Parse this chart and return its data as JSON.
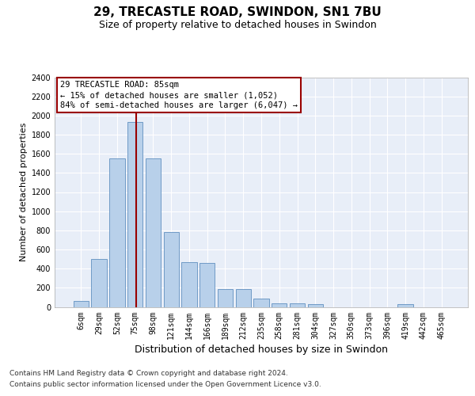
{
  "title1": "29, TRECASTLE ROAD, SWINDON, SN1 7BU",
  "title2": "Size of property relative to detached houses in Swindon",
  "xlabel": "Distribution of detached houses by size in Swindon",
  "ylabel": "Number of detached properties",
  "categories": [
    "6sqm",
    "29sqm",
    "52sqm",
    "75sqm",
    "98sqm",
    "121sqm",
    "144sqm",
    "166sqm",
    "189sqm",
    "212sqm",
    "235sqm",
    "258sqm",
    "281sqm",
    "304sqm",
    "327sqm",
    "350sqm",
    "373sqm",
    "396sqm",
    "419sqm",
    "442sqm",
    "465sqm"
  ],
  "values": [
    60,
    500,
    1550,
    1930,
    1550,
    780,
    465,
    460,
    190,
    190,
    90,
    35,
    35,
    25,
    0,
    0,
    0,
    0,
    25,
    0,
    0
  ],
  "bar_color": "#b8d0ea",
  "bar_edge_color": "#6090c0",
  "vline_color": "#990000",
  "vline_pos": 3.07,
  "annotation_text": "29 TRECASTLE ROAD: 85sqm\n← 15% of detached houses are smaller (1,052)\n84% of semi-detached houses are larger (6,047) →",
  "box_edge_color": "#990000",
  "ylim_max": 2400,
  "yticks": [
    0,
    200,
    400,
    600,
    800,
    1000,
    1200,
    1400,
    1600,
    1800,
    2000,
    2200,
    2400
  ],
  "bg_color": "#e8eef8",
  "grid_color": "#ffffff",
  "title1_fontsize": 11,
  "title2_fontsize": 9,
  "ylabel_fontsize": 8,
  "xlabel_fontsize": 9,
  "tick_fontsize": 7,
  "ann_fontsize": 7.5,
  "footnote1": "Contains HM Land Registry data © Crown copyright and database right 2024.",
  "footnote2": "Contains public sector information licensed under the Open Government Licence v3.0.",
  "footnote_fontsize": 6.5
}
